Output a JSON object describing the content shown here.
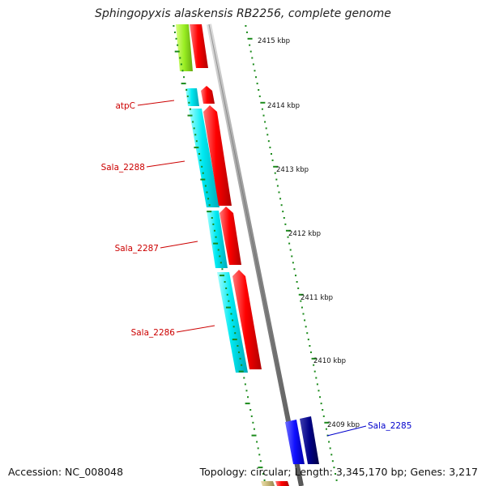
{
  "title": "Sphingopyxis alaskensis RB2256, complete genome",
  "accession": "Accession: NC_008048",
  "summary": "Topology: circular; Length: 3,345,170 bp; Genes: 3,217",
  "colors": {
    "backbone": "#8a8a8a",
    "tick": "#1a8a1a",
    "forward_gene": "#ff0000",
    "reverse_gene": "#00e5ee",
    "label_red": "#cc0000",
    "label_blue": "#0000cc",
    "gene_lime": "#99ee22",
    "gene_blue": "#1010ff",
    "gene_navy": "#000088",
    "gene_tan": "#c8b878"
  },
  "kbp_ticks": [
    "2415 kbp",
    "2414 kbp",
    "2413 kbp",
    "2412 kbp",
    "2411 kbp",
    "2410 kbp",
    "2409 kbp"
  ],
  "gene_labels": [
    {
      "text": "atpC",
      "color": "red"
    },
    {
      "text": "Sala_2288",
      "color": "red"
    },
    {
      "text": "Sala_2287",
      "color": "red"
    },
    {
      "text": "Sala_2286",
      "color": "red"
    },
    {
      "text": "Sala_2285",
      "color": "blue"
    }
  ]
}
